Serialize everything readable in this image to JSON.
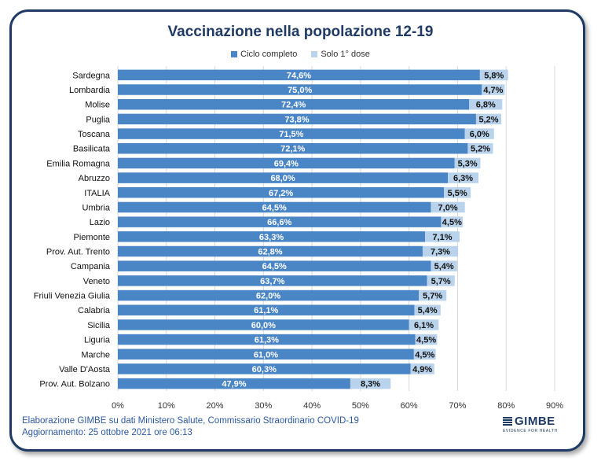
{
  "chart_data": {
    "type": "bar",
    "orientation": "horizontal",
    "stacked": true,
    "title": "Vaccinazione nella popolazione 12-19",
    "categories": [
      "Sardegna",
      "Lombardia",
      "Molise",
      "Puglia",
      "Toscana",
      "Basilicata",
      "Emilia Romagna",
      "Abruzzo",
      "ITALIA",
      "Umbria",
      "Lazio",
      "Piemonte",
      "Prov. Aut. Trento",
      "Campania",
      "Veneto",
      "Friuli Venezia Giulia",
      "Calabria",
      "Sicilia",
      "Liguria",
      "Marche",
      "Valle D'Aosta",
      "Prov. Aut. Bolzano"
    ],
    "series": [
      {
        "name": "Ciclo completo",
        "color": "#4a86c5",
        "values": [
          74.6,
          75.0,
          72.4,
          73.8,
          71.5,
          72.1,
          69.4,
          68.0,
          67.2,
          64.5,
          66.6,
          63.3,
          62.8,
          64.5,
          63.7,
          62.0,
          61.1,
          60.0,
          61.3,
          61.0,
          60.3,
          47.9
        ],
        "labels": [
          "74,6%",
          "75,0%",
          "72,4%",
          "73,8%",
          "71,5%",
          "72,1%",
          "69,4%",
          "68,0%",
          "67,2%",
          "64,5%",
          "66,6%",
          "63,3%",
          "62,8%",
          "64,5%",
          "63,7%",
          "62,0%",
          "61,1%",
          "60,0%",
          "61,3%",
          "61,0%",
          "60,3%",
          "47,9%"
        ]
      },
      {
        "name": "Solo 1° dose",
        "color": "#b9d3ec",
        "values": [
          5.8,
          4.7,
          6.8,
          5.2,
          6.0,
          5.2,
          5.3,
          6.3,
          5.5,
          7.0,
          4.5,
          7.1,
          7.3,
          5.4,
          5.7,
          5.7,
          5.4,
          6.1,
          4.5,
          4.5,
          4.9,
          8.3
        ],
        "labels": [
          "5,8%",
          "4,7%",
          "6,8%",
          "5,2%",
          "6,0%",
          "5,2%",
          "5,3%",
          "6,3%",
          "5,5%",
          "7,0%",
          "4,5%",
          "7,1%",
          "7,3%",
          "5,4%",
          "5,7%",
          "5,7%",
          "5,4%",
          "6,1%",
          "4,5%",
          "4,5%",
          "4,9%",
          "8,3%"
        ]
      }
    ],
    "xlim": [
      0,
      90
    ],
    "xticks": [
      0,
      10,
      20,
      30,
      40,
      50,
      60,
      70,
      80,
      90
    ],
    "xtick_labels": [
      "0%",
      "10%",
      "20%",
      "30%",
      "40%",
      "50%",
      "60%",
      "70%",
      "80%",
      "90%"
    ],
    "grid": true,
    "legend_position": "top-center"
  },
  "footer": {
    "line1": "Elaborazione GIMBE su dati Ministero Salute, Commissario Straordinario COVID-19",
    "line2": "Aggiornamento: 25 ottobre 2021 ore 06:13"
  },
  "logo": {
    "name": "GIMBE",
    "tagline": "EVIDENCE FOR HEALTH"
  }
}
